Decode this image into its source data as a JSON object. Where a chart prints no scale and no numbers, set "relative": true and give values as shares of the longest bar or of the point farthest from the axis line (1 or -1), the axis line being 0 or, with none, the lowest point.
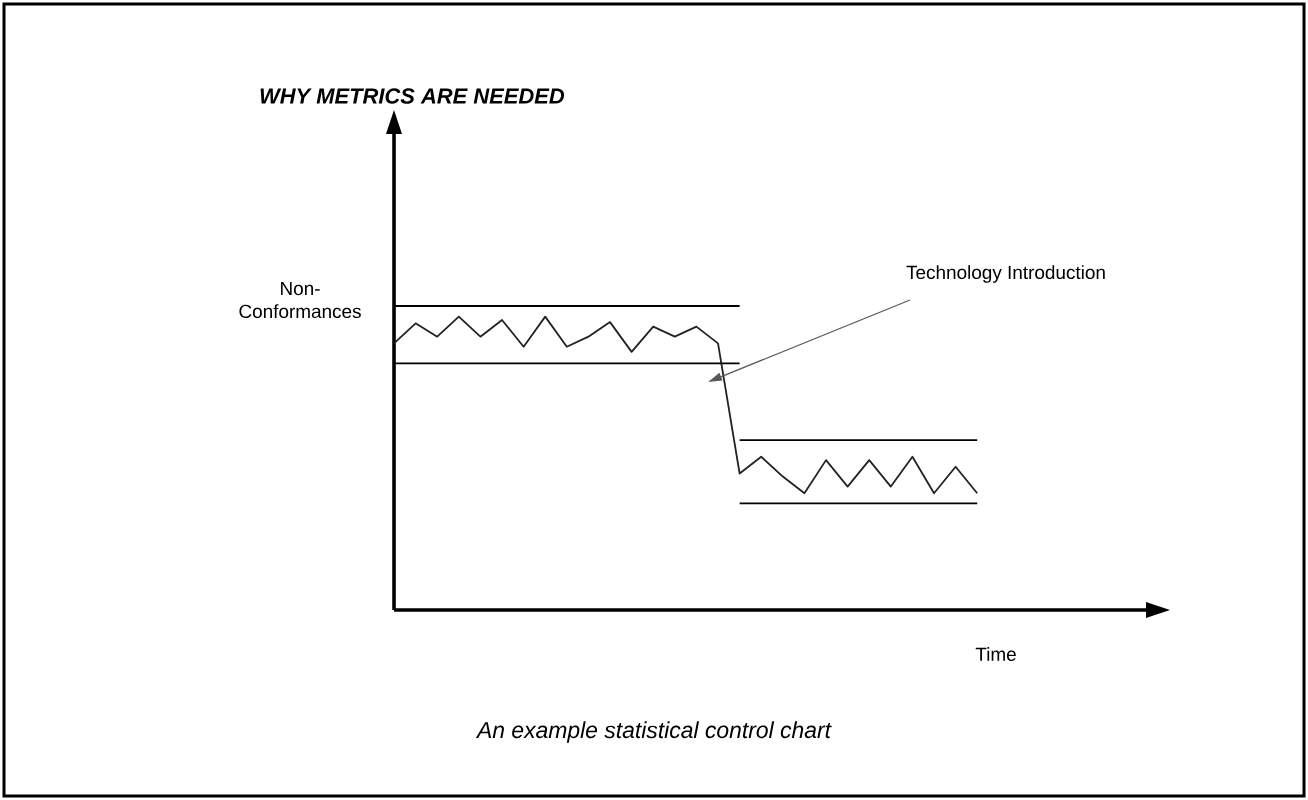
{
  "chart_data": {
    "type": "line",
    "title": "WHY METRICS ARE NEEDED",
    "ylabel": "Non-Conformances",
    "xlabel": "Time",
    "relative": true,
    "marker": "none",
    "categories": [
      null,
      null,
      null,
      null,
      null,
      null,
      null,
      null,
      null,
      null,
      null,
      null,
      null,
      null,
      null,
      null,
      null,
      null,
      null,
      null,
      null,
      null,
      null,
      null,
      null,
      null,
      null,
      null
    ],
    "series": [
      {
        "color": "#222222",
        "values": [
          0.877,
          0.943,
          0.899,
          0.965,
          0.899,
          0.954,
          0.866,
          0.965,
          0.866,
          0.899,
          0.947,
          0.849,
          0.932,
          0.899,
          0.932,
          0.877,
          0.449,
          0.504,
          0.439,
          0.384,
          0.493,
          0.406,
          0.493,
          0.406,
          0.504,
          0.384,
          0.471,
          0.384
        ]
      },
      {
        "color": "#000000",
        "values": [
          1,
          1,
          1,
          1,
          1,
          1,
          1,
          1,
          1,
          1,
          1,
          1,
          1,
          1,
          1,
          1,
          1,
          null,
          null,
          null,
          null,
          null,
          null,
          null,
          null,
          null,
          null,
          null
        ]
      },
      {
        "color": "#000000",
        "values": [
          0.811,
          0.811,
          0.811,
          0.811,
          0.811,
          0.811,
          0.811,
          0.811,
          0.811,
          0.811,
          0.811,
          0.811,
          0.811,
          0.811,
          0.811,
          0.811,
          0.811,
          null,
          null,
          null,
          null,
          null,
          null,
          null,
          null,
          null,
          null,
          null
        ]
      },
      {
        "color": "#000000",
        "values": [
          null,
          null,
          null,
          null,
          null,
          null,
          null,
          null,
          null,
          null,
          null,
          null,
          null,
          null,
          null,
          null,
          0.559,
          0.559,
          0.559,
          0.559,
          0.559,
          0.559,
          0.559,
          0.559,
          0.559,
          0.559,
          0.559,
          0.559
        ]
      },
      {
        "color": "#000000",
        "values": [
          null,
          null,
          null,
          null,
          null,
          null,
          null,
          null,
          null,
          null,
          null,
          null,
          null,
          null,
          null,
          null,
          0.351,
          0.351,
          0.351,
          0.351,
          0.351,
          0.351,
          0.351,
          0.351,
          0.351,
          0.351,
          0.351,
          0.351
        ]
      }
    ],
    "annotations": [
      "Technology Introduction",
      "An example statistical control chart"
    ]
  }
}
